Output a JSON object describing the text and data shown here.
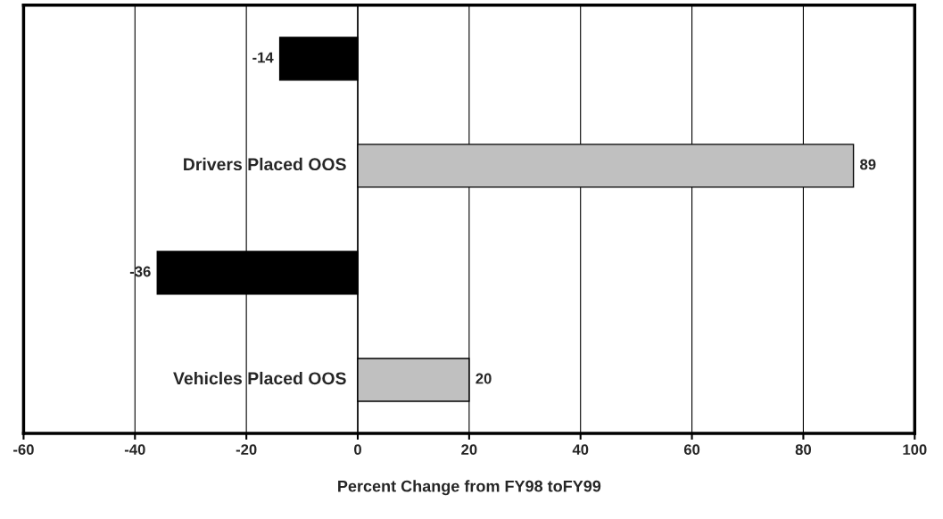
{
  "chart_data": {
    "type": "bar",
    "orientation": "horizontal",
    "categories": [
      null,
      "Drivers Placed OOS",
      null,
      "Vehicles Placed OOS"
    ],
    "values": [
      -14,
      89,
      -36,
      20
    ],
    "colors": [
      "#000000",
      "#c0c0c0",
      "#000000",
      "#c0c0c0"
    ],
    "xlabel": "Percent Change from FY98 toFY99",
    "xlim": [
      -60,
      100
    ],
    "xticks": [
      -60,
      -40,
      -20,
      0,
      20,
      40,
      60,
      80,
      100
    ],
    "grid": "x",
    "data_labels": true
  }
}
